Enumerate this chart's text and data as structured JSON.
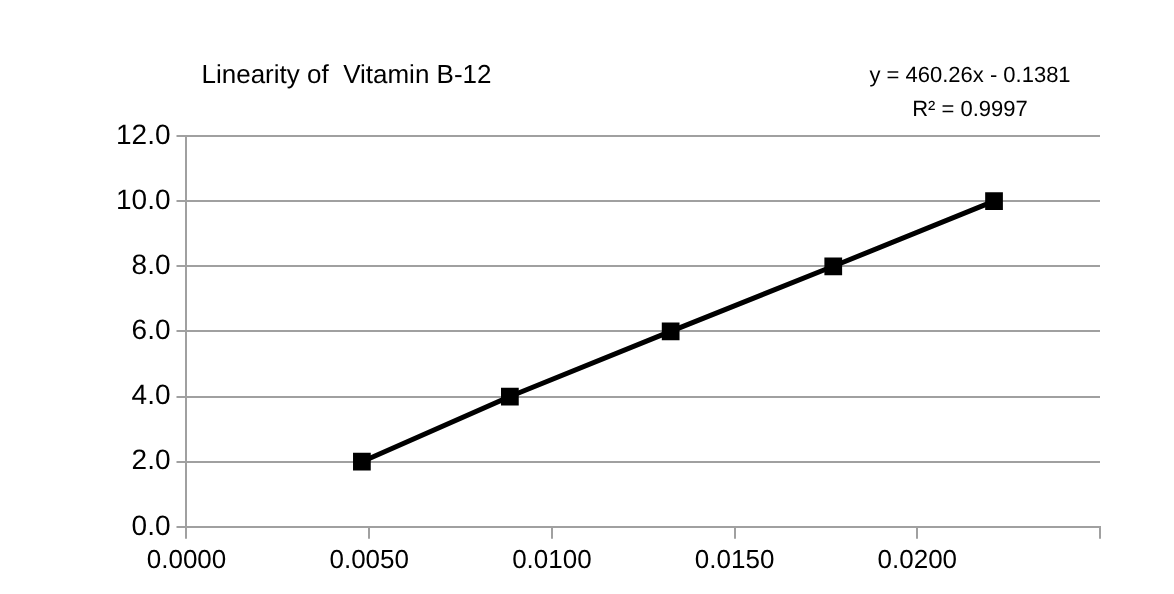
{
  "chart_data": {
    "type": "line",
    "title": "Linearity of  Vitamin B-12",
    "annotations": [
      "y = 460.26x - 0.1381",
      "R² = 0.9997"
    ],
    "x": [
      0.0048,
      0.00885,
      0.01325,
      0.0177,
      0.0221
    ],
    "series": [
      {
        "color": "#000000",
        "values": [
          2,
          4,
          6,
          8,
          10
        ]
      }
    ],
    "xlim": [
      0,
      0.025
    ],
    "xticks": [
      {
        "value": 0,
        "label": "0.0000"
      },
      {
        "value": 0.005,
        "label": "0.0050"
      },
      {
        "value": 0.01,
        "label": "0.0100"
      },
      {
        "value": 0.015,
        "label": "0.0150"
      },
      {
        "value": 0.02,
        "label": "0.0200"
      },
      {
        "value": 0.025,
        "label": null
      }
    ],
    "ylim": [
      0,
      12
    ],
    "yticks": [
      {
        "value": 0,
        "label": "0.0"
      },
      {
        "value": 2,
        "label": "2.0"
      },
      {
        "value": 4,
        "label": "4.0"
      },
      {
        "value": 6,
        "label": "6.0"
      },
      {
        "value": 8,
        "label": "8.0"
      },
      {
        "value": 10,
        "label": "10.0"
      },
      {
        "value": 12,
        "label": "12.0"
      }
    ],
    "grid": "y",
    "marker": "square",
    "line_style": "solid",
    "legend": false
  }
}
